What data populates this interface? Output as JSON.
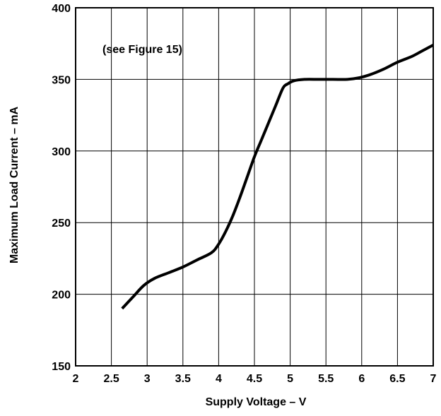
{
  "chart_data": {
    "type": "line",
    "title": "",
    "xlabel": "Supply Voltage – V",
    "ylabel": "Maximum Load Current – mA",
    "xlim": [
      2,
      7
    ],
    "ylim": [
      150,
      400
    ],
    "xticks": [
      2,
      2.5,
      3,
      3.5,
      4,
      4.5,
      5,
      5.5,
      6,
      6.5,
      7
    ],
    "xtick_labels": [
      "2",
      "2.5",
      "3",
      "3.5",
      "4",
      "4.5",
      "5",
      "5.5",
      "6",
      "6.5",
      "7"
    ],
    "yticks": [
      150,
      200,
      250,
      300,
      350,
      400
    ],
    "ytick_labels": [
      "150",
      "200",
      "250",
      "300",
      "350",
      "400"
    ],
    "grid": true,
    "legend": "none",
    "annotations": [
      "(see Figure 15)"
    ],
    "series": [
      {
        "x": [
          2.65,
          2.8,
          2.95,
          3.1,
          3.3,
          3.5,
          3.7,
          3.9,
          4.0,
          4.1,
          4.2,
          4.3,
          4.4,
          4.5,
          4.6,
          4.7,
          4.8,
          4.9,
          4.97,
          5.05,
          5.2,
          5.4,
          5.6,
          5.8,
          5.95,
          6.1,
          6.3,
          6.5,
          6.7,
          6.85,
          7.0
        ],
        "y": [
          190,
          198,
          206,
          211,
          215,
          219,
          224,
          229,
          235,
          244,
          255,
          268,
          282,
          296,
          308,
          320,
          332,
          344,
          347,
          349,
          350,
          350,
          350,
          350,
          351,
          353,
          357,
          362,
          366,
          370,
          374
        ],
        "color": "#000000"
      }
    ]
  }
}
